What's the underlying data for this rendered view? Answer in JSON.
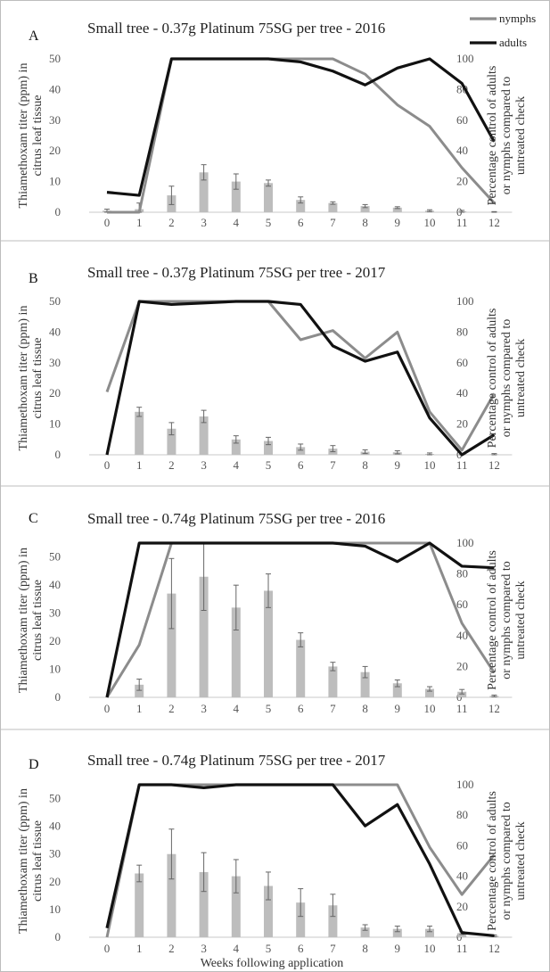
{
  "legend": [
    {
      "name": "nymphs",
      "color": "#8c8c8c"
    },
    {
      "name": "adults",
      "color": "#111111"
    }
  ],
  "xlabel": "Weeks following application",
  "ylabel_left": [
    "Thiamethoxam titer (ppm) in",
    "citrus leaf tissue"
  ],
  "ylabel_right": [
    "Percentage control of adults",
    "or nymphs compared to",
    "untreated check"
  ],
  "bar_color": "#bdbdbd",
  "chart_data": [
    {
      "type": "bar",
      "label": "A",
      "title": "Small tree - 0.37g Platinum 75SG per tree - 2016",
      "categories": [
        "0",
        "1",
        "2",
        "3",
        "4",
        "5",
        "6",
        "7",
        "8",
        "9",
        "10",
        "11",
        "12"
      ],
      "left_ticks": [
        "0",
        "10",
        "20",
        "30",
        "40",
        "50"
      ],
      "right_ticks": [
        "0",
        "20",
        "40",
        "60",
        "80",
        "100"
      ],
      "ylim_left": [
        0,
        50
      ],
      "ylim_right": [
        0,
        100
      ],
      "bars": [
        0.5,
        1,
        5.5,
        13,
        10,
        9.5,
        4,
        3,
        2,
        1.5,
        0.5,
        0.3,
        0.1
      ],
      "errors": [
        0.5,
        2,
        3,
        2.5,
        2.5,
        1,
        1,
        0.4,
        0.5,
        0.3,
        0.3,
        0.3,
        0.1
      ],
      "series": [
        {
          "name": "nymphs",
          "values": [
            0,
            0,
            100,
            100,
            100,
            100,
            100,
            100,
            90,
            70,
            56,
            29,
            6
          ]
        },
        {
          "name": "adults",
          "values": [
            13,
            11,
            100,
            100,
            100,
            100,
            98,
            92,
            83,
            94,
            100,
            84,
            46
          ]
        }
      ]
    },
    {
      "type": "bar",
      "label": "B",
      "title": "Small tree - 0.37g Platinum 75SG per tree - 2017",
      "categories": [
        "0",
        "1",
        "2",
        "3",
        "4",
        "5",
        "6",
        "7",
        "8",
        "9",
        "10",
        "11",
        "12"
      ],
      "left_ticks": [
        "0",
        "10",
        "20",
        "30",
        "40",
        "50"
      ],
      "right_ticks": [
        "0",
        "20",
        "40",
        "60",
        "80",
        "100"
      ],
      "ylim_left": [
        0,
        50
      ],
      "ylim_right": [
        0,
        100
      ],
      "bars": [
        0,
        14,
        8.5,
        12.5,
        5,
        4.5,
        2.5,
        2,
        1,
        0.8,
        0.3,
        0.2,
        0.2
      ],
      "errors": [
        0,
        1.5,
        2,
        2,
        1.2,
        1.2,
        1,
        1,
        0.6,
        0.5,
        0.3,
        0.2,
        0.2
      ],
      "series": [
        {
          "name": "nymphs",
          "values": [
            41,
            100,
            100,
            100,
            100,
            100,
            75,
            81,
            63,
            80,
            28,
            3,
            40
          ]
        },
        {
          "name": "adults",
          "values": [
            0,
            100,
            98,
            99,
            100,
            100,
            98,
            71,
            61,
            67,
            24,
            0,
            13
          ]
        }
      ]
    },
    {
      "type": "bar",
      "label": "C",
      "title": "Small tree - 0.74g Platinum 75SG per tree - 2016",
      "categories": [
        "0",
        "1",
        "2",
        "3",
        "4",
        "5",
        "6",
        "7",
        "8",
        "9",
        "10",
        "11",
        "12"
      ],
      "left_ticks": [
        "0",
        "10",
        "20",
        "30",
        "40",
        "50"
      ],
      "right_ticks": [
        "0",
        "20",
        "40",
        "60",
        "80",
        "100"
      ],
      "ylim_left": [
        0,
        55
      ],
      "ylim_right": [
        0,
        100
      ],
      "bars": [
        0,
        4.5,
        37,
        43,
        32,
        38,
        20.5,
        11,
        9,
        5,
        3,
        2,
        0.5
      ],
      "errors": [
        0,
        2,
        12.5,
        12,
        8,
        6,
        2.5,
        1.5,
        2,
        1.2,
        0.8,
        0.8,
        0.3
      ],
      "series": [
        {
          "name": "nymphs",
          "values": [
            0,
            34,
            100,
            100,
            100,
            100,
            100,
            100,
            100,
            100,
            100,
            48,
            16
          ]
        },
        {
          "name": "adults",
          "values": [
            0,
            100,
            100,
            100,
            100,
            100,
            100,
            100,
            98,
            88,
            100,
            85,
            84
          ]
        }
      ]
    },
    {
      "type": "bar",
      "label": "D",
      "title": "Small tree - 0.74g Platinum 75SG per tree - 2017",
      "categories": [
        "0",
        "1",
        "2",
        "3",
        "4",
        "5",
        "6",
        "7",
        "8",
        "9",
        "10",
        "11",
        "12"
      ],
      "left_ticks": [
        "0",
        "10",
        "20",
        "30",
        "40",
        "50"
      ],
      "right_ticks": [
        "0",
        "20",
        "40",
        "60",
        "80",
        "100"
      ],
      "ylim_left": [
        0,
        55
      ],
      "ylim_right": [
        0,
        100
      ],
      "bars": [
        0,
        23,
        30,
        23.5,
        22,
        18.5,
        12.5,
        11.5,
        3.5,
        3,
        3,
        1.5,
        0.5
      ],
      "errors": [
        0,
        3,
        9,
        7,
        6,
        5,
        5,
        4,
        1,
        1,
        1,
        0.5,
        0.3
      ],
      "series": [
        {
          "name": "nymphs",
          "values": [
            0,
            100,
            100,
            100,
            100,
            100,
            100,
            100,
            100,
            100,
            59,
            28,
            54
          ]
        },
        {
          "name": "adults",
          "values": [
            6,
            100,
            100,
            98,
            100,
            100,
            100,
            100,
            73,
            87,
            48,
            3,
            1
          ]
        }
      ]
    }
  ]
}
